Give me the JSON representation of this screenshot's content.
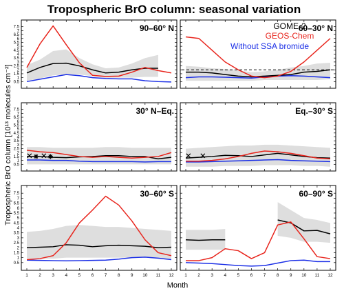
{
  "title": "Tropospheric BrO column: seasonal variation",
  "ylabel": "Tropospheric BrO column [10¹³ molecules cm⁻²]",
  "xlabel": "Month",
  "colors": {
    "gome": "#000000",
    "geos": "#e8241c",
    "ssa": "#1a2ee6",
    "band": "#dedede"
  },
  "legend": [
    "GOME-2",
    "GEOS-Chem",
    "Without SSA bromide"
  ],
  "chart_data": [
    {
      "type": "line",
      "label": "90–60° N",
      "x": [
        1,
        2,
        3,
        4,
        5,
        6,
        7,
        8,
        9,
        10,
        11,
        12
      ],
      "ylim": [
        0,
        8
      ],
      "yticks": [
        0.5,
        1,
        1.5,
        2,
        2.5,
        3,
        3.5,
        4,
        4.5,
        5,
        5.5,
        6,
        6.5,
        7,
        7.5
      ],
      "series": [
        {
          "name": "GOME-2",
          "values": [
            1.6,
            2.3,
            2.8,
            2.85,
            2.5,
            2.0,
            1.6,
            1.7,
            2.0,
            2.2,
            2.2,
            null
          ]
        },
        {
          "name": "GEOS-Chem",
          "values": [
            2.3,
            5.3,
            7.6,
            5.2,
            2.9,
            1.3,
            1.15,
            1.2,
            1.7,
            2.3,
            1.9,
            1.6
          ]
        },
        {
          "name": "Without SSA bromide",
          "values": [
            0.5,
            0.8,
            1.1,
            1.4,
            1.25,
            1.0,
            0.9,
            0.85,
            0.85,
            0.6,
            0.5,
            0.45
          ]
        }
      ],
      "band": {
        "lower": [
          0.6,
          0.9,
          1.3,
          1.4,
          1.4,
          1.2,
          1.0,
          1.0,
          1.0,
          1.1,
          1.1,
          null
        ],
        "upper": [
          2.6,
          3.3,
          4.4,
          4.6,
          3.5,
          2.7,
          2.2,
          2.3,
          2.8,
          3.5,
          3.9,
          null
        ]
      }
    },
    {
      "type": "line",
      "label": "60–30° N",
      "x": [
        1,
        2,
        3,
        4,
        5,
        6,
        7,
        8,
        9,
        10,
        11,
        12
      ],
      "ylim": [
        0,
        8
      ],
      "yticks": [
        0.5,
        1,
        1.5,
        2,
        2.5,
        3,
        3.5,
        4,
        4.5,
        5,
        5.5,
        6,
        6.5,
        7,
        7.5
      ],
      "series": [
        {
          "name": "GOME-2",
          "values": [
            1.7,
            1.7,
            1.6,
            1.4,
            1.2,
            1.1,
            1.2,
            1.3,
            1.4,
            1.7,
            1.8,
            2.0
          ]
        },
        {
          "name": "GEOS-Chem",
          "values": [
            6.2,
            6.0,
            4.5,
            3.0,
            2.0,
            1.2,
            1.0,
            1.2,
            1.8,
            3.0,
            4.5,
            6.0
          ]
        },
        {
          "name": "Without SSA bromide",
          "values": [
            1.0,
            1.1,
            1.1,
            1.05,
            1.0,
            0.95,
            1.1,
            1.2,
            1.25,
            1.2,
            1.1,
            1.0
          ]
        }
      ],
      "band": {
        "lower": [
          0.6,
          0.6,
          0.6,
          0.6,
          0.6,
          0.6,
          0.7,
          0.7,
          0.7,
          0.7,
          0.7,
          0.8
        ],
        "upper": [
          2.5,
          2.4,
          2.2,
          2.1,
          1.9,
          1.7,
          1.8,
          2.0,
          2.3,
          2.5,
          2.8,
          2.9
        ]
      },
      "refline": 2.0
    },
    {
      "type": "line",
      "label": "30° N–Eq.",
      "x": [
        1,
        2,
        3,
        4,
        5,
        6,
        7,
        8,
        9,
        10,
        11,
        12
      ],
      "ylim": [
        0,
        8
      ],
      "yticks": [
        0.5,
        1,
        1.5,
        2,
        2.5,
        3,
        3.5,
        4,
        4.5,
        5,
        5.5,
        6,
        6.5,
        7,
        7.5
      ],
      "series": [
        {
          "name": "GOME-2",
          "values": [
            1.5,
            1.5,
            1.4,
            1.35,
            1.45,
            1.5,
            1.6,
            1.6,
            1.5,
            1.5,
            1.2,
            1.4
          ]
        },
        {
          "name": "GEOS-Chem",
          "values": [
            2.3,
            2.1,
            2.0,
            1.75,
            1.5,
            1.4,
            1.5,
            1.4,
            1.3,
            1.4,
            1.5,
            2.0
          ]
        },
        {
          "name": "Without SSA bromide",
          "values": [
            1.05,
            1.05,
            1.0,
            1.0,
            0.9,
            0.85,
            0.85,
            0.85,
            0.85,
            0.8,
            0.85,
            0.85
          ]
        }
      ],
      "band": {
        "lower": [
          0.5,
          0.5,
          0.5,
          0.5,
          0.5,
          0.5,
          0.5,
          0.5,
          0.5,
          0.5,
          0.5,
          0.5
        ],
        "upper": [
          2.7,
          2.7,
          2.6,
          2.6,
          2.6,
          2.6,
          2.7,
          2.7,
          2.6,
          2.6,
          2.6,
          2.6
        ]
      },
      "markers": [
        {
          "x": 1.2,
          "y": 1.6,
          "symbol": "x"
        },
        {
          "x": 1.7,
          "y": 1.5,
          "symbol": "*"
        },
        {
          "x": 2.3,
          "y": 1.6,
          "symbol": "x"
        },
        {
          "x": 2.8,
          "y": 1.5,
          "symbol": "*"
        }
      ]
    },
    {
      "type": "line",
      "label": "Eq.–30° S",
      "x": [
        1,
        2,
        3,
        4,
        5,
        6,
        7,
        8,
        9,
        10,
        11,
        12
      ],
      "ylim": [
        0,
        8
      ],
      "yticks": [
        0.5,
        1,
        1.5,
        2,
        2.5,
        3,
        3.5,
        4,
        4.5,
        5,
        5.5,
        6,
        6.5,
        7,
        7.5
      ],
      "series": [
        {
          "name": "GOME-2",
          "values": [
            1.3,
            1.4,
            1.5,
            1.65,
            1.6,
            1.5,
            1.7,
            1.9,
            1.7,
            1.5,
            1.35,
            1.3
          ]
        },
        {
          "name": "GEOS-Chem",
          "values": [
            0.9,
            0.9,
            1.0,
            1.2,
            1.5,
            1.9,
            2.2,
            2.1,
            1.9,
            1.6,
            1.3,
            1.2
          ]
        },
        {
          "name": "Without SSA bromide",
          "values": [
            0.8,
            0.8,
            0.85,
            0.9,
            0.95,
            1.0,
            1.05,
            1.1,
            1.0,
            0.95,
            0.9,
            0.85
          ]
        }
      ],
      "band": {
        "lower": [
          0.2,
          0.2,
          0.2,
          0.3,
          0.3,
          0.3,
          0.4,
          0.4,
          0.4,
          0.3,
          0.3,
          0.2
        ],
        "upper": [
          2.5,
          2.6,
          2.7,
          2.8,
          2.9,
          2.9,
          3.0,
          3.0,
          2.9,
          2.8,
          2.7,
          2.6
        ]
      },
      "markers": [
        {
          "x": 1.2,
          "y": 1.6,
          "symbol": "x"
        },
        {
          "x": 2.3,
          "y": 1.6,
          "symbol": "x"
        }
      ]
    },
    {
      "type": "line",
      "label": "30–60° S",
      "x": [
        1,
        2,
        3,
        4,
        5,
        6,
        7,
        8,
        9,
        10,
        11,
        12
      ],
      "ylim": [
        0,
        8
      ],
      "yticks": [
        0.5,
        1,
        1.5,
        2,
        2.5,
        3,
        3.5,
        4,
        4.5,
        5,
        5.5,
        6,
        6.5,
        7,
        7.5
      ],
      "series": [
        {
          "name": "GOME-2",
          "values": [
            2.0,
            2.05,
            2.1,
            2.3,
            2.25,
            2.1,
            2.2,
            2.25,
            2.2,
            2.15,
            2.0,
            2.05
          ]
        },
        {
          "name": "GEOS-Chem",
          "values": [
            0.8,
            0.9,
            1.2,
            2.5,
            4.5,
            5.8,
            7.2,
            6.3,
            4.7,
            2.8,
            1.5,
            1.2
          ]
        },
        {
          "name": "Without SSA bromide",
          "values": [
            0.75,
            0.72,
            0.7,
            0.68,
            0.7,
            0.72,
            0.75,
            0.85,
            1.0,
            1.05,
            0.95,
            0.8
          ]
        }
      ],
      "band": {
        "lower": [
          0.9,
          0.9,
          0.9,
          1.0,
          1.0,
          1.0,
          1.0,
          1.0,
          1.0,
          1.0,
          0.9,
          0.9
        ],
        "upper": [
          3.6,
          3.7,
          3.9,
          4.2,
          4.3,
          4.2,
          4.1,
          4.1,
          4.0,
          3.9,
          3.8,
          3.7
        ]
      }
    },
    {
      "type": "line",
      "label": "60–90° S",
      "x": [
        1,
        2,
        3,
        4,
        5,
        6,
        7,
        8,
        9,
        10,
        11,
        12
      ],
      "ylim": [
        0,
        8
      ],
      "yticks": [
        0.5,
        1,
        1.5,
        2,
        2.5,
        3,
        3.5,
        4,
        4.5,
        5,
        5.5,
        6,
        6.5,
        7,
        7.5
      ],
      "series": [
        {
          "name": "GOME-2",
          "values": [
            2.8,
            2.75,
            2.8,
            2.8,
            null,
            null,
            null,
            4.8,
            4.5,
            3.7,
            3.75,
            3.4
          ]
        },
        {
          "name": "GEOS-Chem",
          "values": [
            0.7,
            0.7,
            1.0,
            1.9,
            1.7,
            0.9,
            1.5,
            4.3,
            4.6,
            2.9,
            1.1,
            0.9
          ]
        },
        {
          "name": "Without SSA bromide",
          "values": [
            0.5,
            0.45,
            0.4,
            0.3,
            0.2,
            0.15,
            0.2,
            0.45,
            0.7,
            0.75,
            0.6,
            0.6
          ]
        }
      ],
      "band": {
        "lower": [
          1.8,
          1.8,
          1.8,
          1.8,
          null,
          null,
          null,
          3.2,
          3.0,
          2.6,
          2.6,
          2.5
        ],
        "upper": [
          3.8,
          3.8,
          3.8,
          3.9,
          null,
          null,
          null,
          6.6,
          5.8,
          5.0,
          4.8,
          4.5
        ]
      }
    }
  ]
}
